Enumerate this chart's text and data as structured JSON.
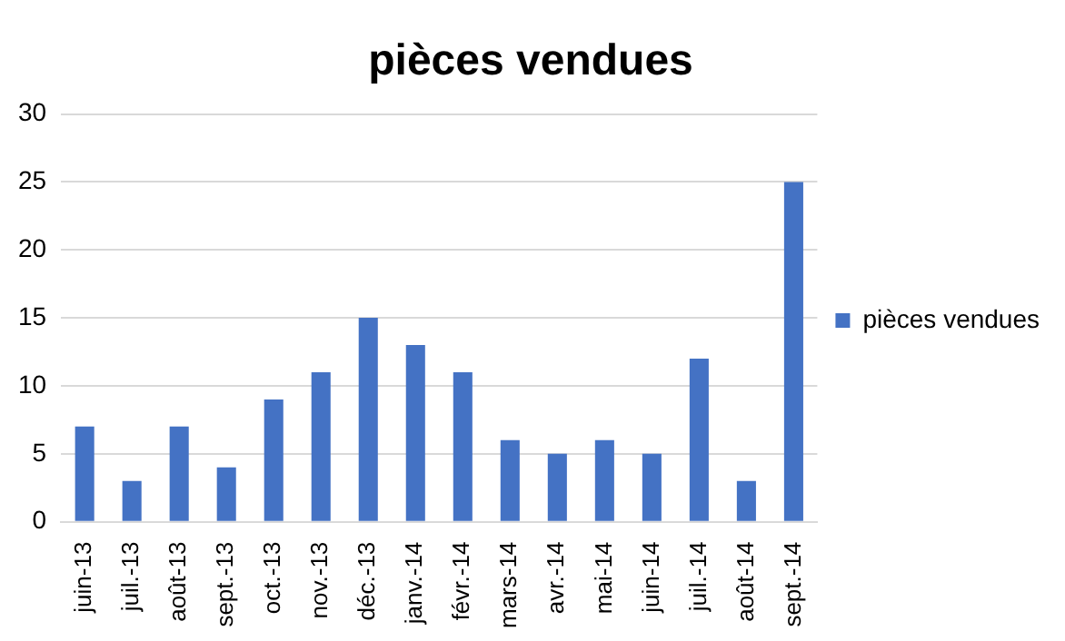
{
  "chart_data": {
    "type": "bar",
    "title": "pièces vendues",
    "categories": [
      "juin-13",
      "juil.-13",
      "août-13",
      "sept.-13",
      "oct.-13",
      "nov.-13",
      "déc.-13",
      "janv.-14",
      "févr.-14",
      "mars-14",
      "avr.-14",
      "mai-14",
      "juin-14",
      "juil.-14",
      "août-14",
      "sept.-14"
    ],
    "series": [
      {
        "name": "pièces vendues",
        "color": "#4472c4",
        "values": [
          7,
          3,
          7,
          4,
          9,
          11,
          15,
          13,
          11,
          6,
          5,
          6,
          5,
          12,
          3,
          25
        ]
      }
    ],
    "ylim": [
      0,
      30
    ],
    "yticks": [
      0,
      5,
      10,
      15,
      20,
      25,
      30
    ],
    "grid": "y",
    "legend": "right"
  }
}
